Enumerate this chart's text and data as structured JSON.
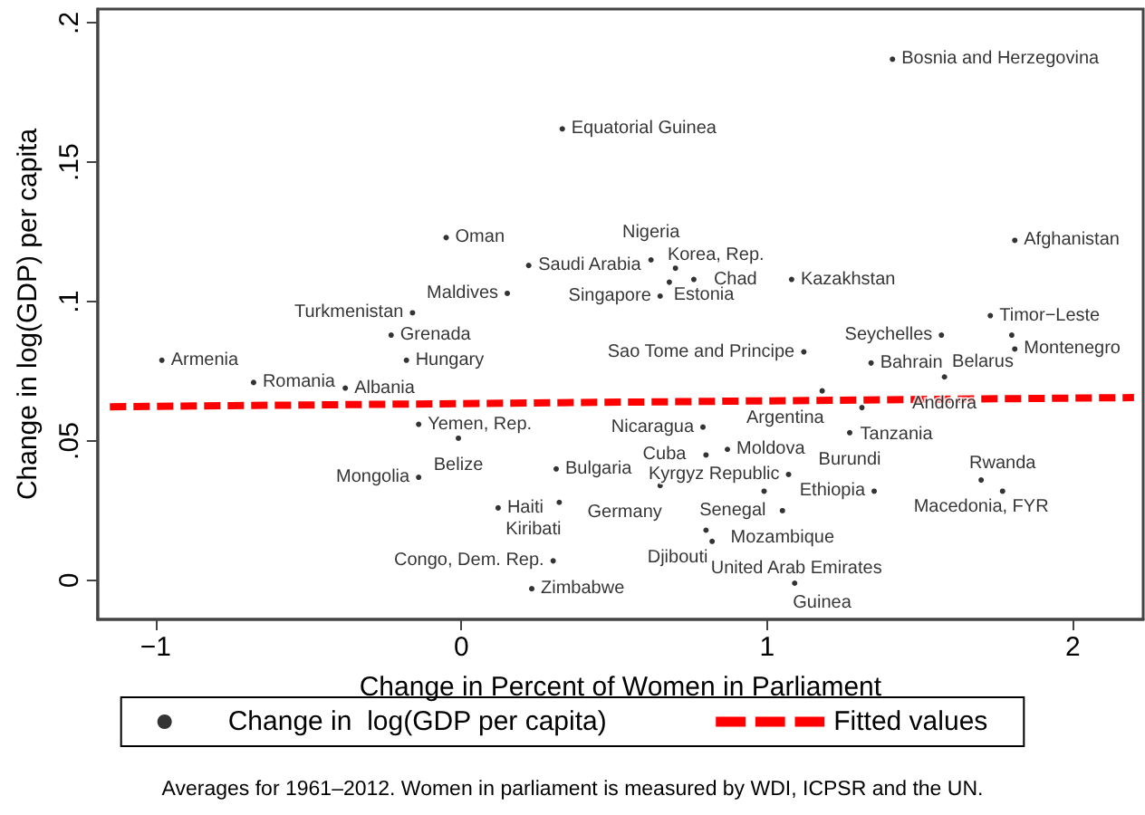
{
  "chart_data": {
    "type": "scatter",
    "xlabel": "Change in Percent of Women in Parliament",
    "ylabel": "Change in log(GDP) per capita",
    "annotations": [
      "Averages for 1961–2012. Women in parliament is measured by WDI, ICPSR and the UN."
    ],
    "xlim": [
      -1.19,
      2.23
    ],
    "xticks": [
      {
        "value": -1,
        "label": "−1"
      },
      0,
      1,
      2
    ],
    "ylim": [
      -0.014,
      0.205
    ],
    "yticks": [
      0,
      {
        "value": 0.05,
        "label": ".05"
      },
      {
        "value": 0.1,
        "label": ".1"
      },
      {
        "value": 0.15,
        "label": ".15"
      },
      {
        "value": 0.2,
        "label": ".2"
      }
    ],
    "grid": false,
    "legend": "bottom",
    "series": [
      {
        "name": "Change in  log(GDP per capita)",
        "color": "#000000",
        "x": [
          1.41,
          0.33,
          -0.05,
          1.81,
          0.22,
          0.62,
          0.7,
          0.68,
          0.76,
          1.08,
          0.65,
          0.15,
          -0.16,
          1.73,
          -0.23,
          1.57,
          1.8,
          1.81,
          -0.98,
          -0.18,
          1.34,
          -0.68,
          1.58,
          -0.38,
          1.18,
          1.31,
          -0.14,
          -0.01,
          1.27,
          0.79,
          0.87,
          -0.14,
          1.07,
          1.7,
          1.35,
          1.77,
          0.99,
          0.65,
          1.05,
          0.8,
          0.82,
          0.3,
          1.09,
          0.23,
          0.12,
          0.31,
          1.12,
          0.8,
          0.32
        ],
        "values": [
          0.187,
          0.162,
          0.123,
          0.122,
          0.113,
          0.115,
          0.112,
          0.107,
          0.108,
          0.108,
          0.102,
          0.103,
          0.096,
          0.095,
          0.088,
          0.088,
          0.088,
          0.083,
          0.079,
          0.079,
          0.078,
          0.071,
          0.073,
          0.069,
          0.068,
          0.062,
          0.056,
          0.051,
          0.053,
          0.055,
          0.047,
          0.037,
          0.038,
          0.036,
          0.032,
          0.032,
          0.032,
          0.034,
          0.025,
          0.018,
          0.014,
          0.007,
          -0.001,
          -0.003,
          0.026,
          0.04,
          0.082,
          0.045,
          0.028
        ],
        "value_labels": [
          "Bosnia and Herzegovina",
          "Equatorial Guinea",
          "Oman",
          "Afghanistan",
          "Saudi Arabia",
          "Nigeria",
          "Estonia",
          "Korea, Rep.",
          "Chad",
          "Kazakhstan",
          "Singapore",
          "Maldives",
          "Turkmenistan",
          "Timor−Leste",
          "Grenada",
          "Seychelles",
          "Belarus",
          "Montenegro",
          "Armenia",
          "Hungary",
          "Bahrain",
          "Romania",
          "Andorra",
          "Albania",
          "Argentina",
          "Tanzania",
          "Yemen, Rep.",
          "Belize",
          "Burundi",
          "Nicaragua",
          "Moldova",
          "Mongolia",
          "Kyrgyz Republic",
          "Macedonia, FYR",
          "Ethiopia",
          "Rwanda",
          "Senegal",
          "Germany",
          "Mozambique",
          "Djibouti",
          "United Arab Emirates",
          "Congo, Dem. Rep.",
          "Guinea",
          "Zimbabwe",
          "Haiti",
          "Bulgaria",
          "Sao Tome and Principe",
          "Cuba",
          "Kiribati"
        ]
      },
      {
        "name": "Fitted values",
        "type": "line",
        "line_style": "dashed",
        "marker": "none",
        "color": "#ff0000",
        "x": [
          -1.15,
          2.2
        ],
        "values": [
          0.0623,
          0.0656
        ]
      }
    ]
  }
}
